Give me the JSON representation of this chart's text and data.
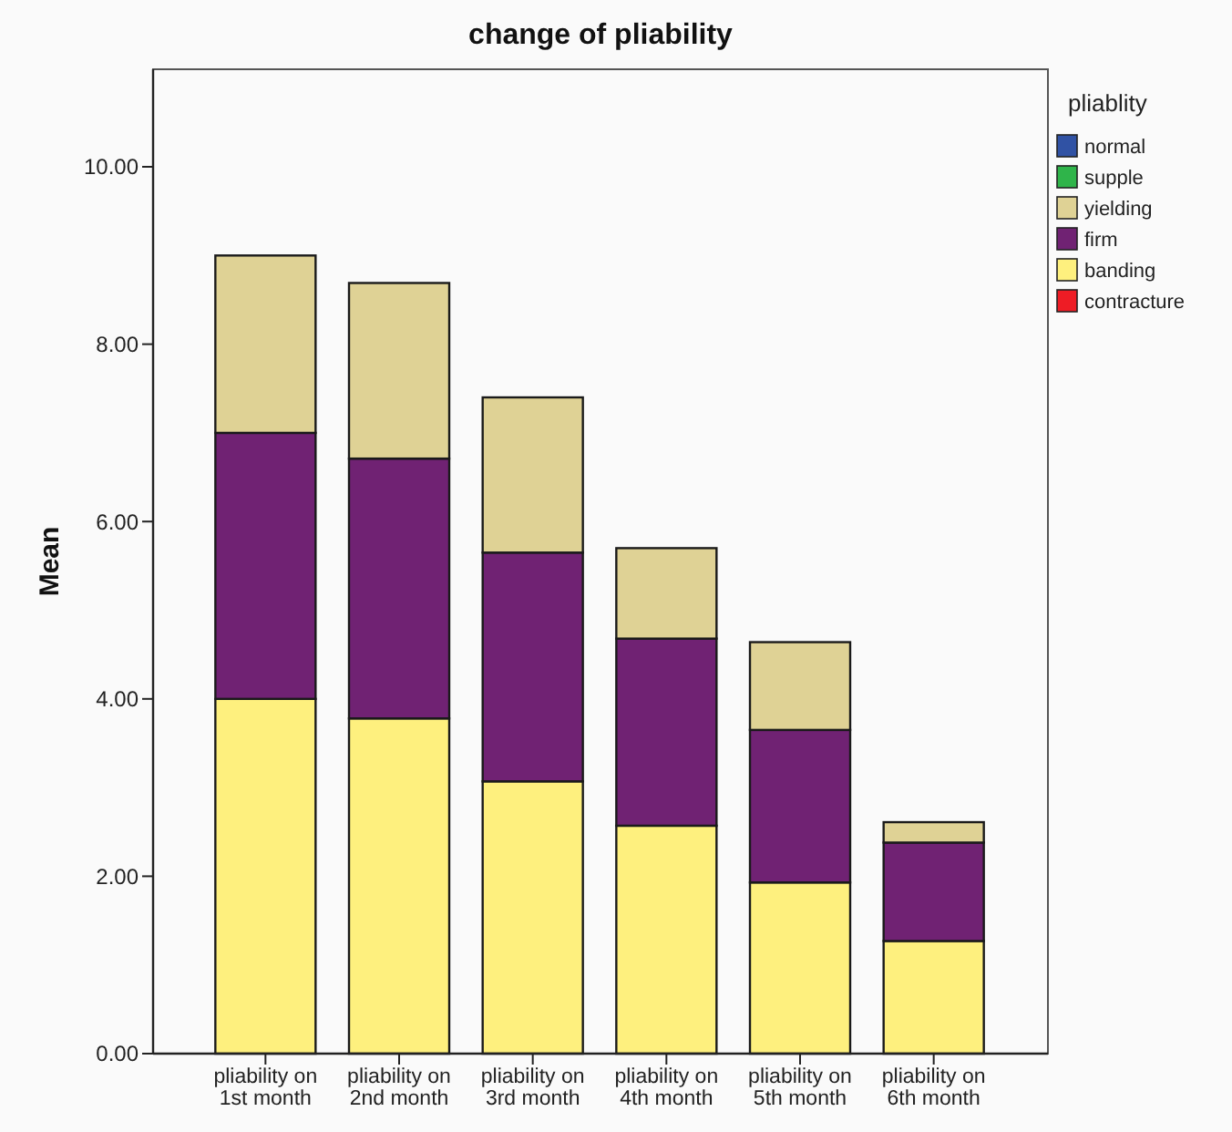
{
  "chart_data": {
    "type": "bar",
    "title": "change of pliability",
    "ylabel": "Mean",
    "legend_title": "pliablity",
    "legend": "right",
    "stacked": true,
    "categories": [
      "pliability on 1st month",
      "pliability on 2nd month",
      "pliability on 3rd month",
      "pliability on 4th month",
      "pliability on 5th month",
      "pliability on 6th month"
    ],
    "ylim": [
      0,
      11.1
    ],
    "yticks": [
      {
        "value": 0,
        "label": "0.00"
      },
      {
        "value": 2,
        "label": "2.00"
      },
      {
        "value": 4,
        "label": "4.00"
      },
      {
        "value": 6,
        "label": "6.00"
      },
      {
        "value": 8,
        "label": "8.00"
      },
      {
        "value": 10,
        "label": "10.00"
      }
    ],
    "series": [
      {
        "name": "contracture",
        "color": "#ee1c25",
        "values": [
          0,
          0,
          0,
          0,
          0,
          0
        ]
      },
      {
        "name": "banding",
        "color": "#fef07e",
        "values": [
          4.0,
          3.78,
          3.07,
          2.57,
          1.93,
          1.27
        ]
      },
      {
        "name": "firm",
        "color": "#702273",
        "values": [
          3.0,
          2.93,
          2.58,
          2.11,
          1.72,
          1.11
        ]
      },
      {
        "name": "yielding",
        "color": "#dfd295",
        "values": [
          2.0,
          1.98,
          1.75,
          1.02,
          0.99,
          0.23
        ]
      },
      {
        "name": "supple",
        "color": "#2fb44a",
        "values": [
          0,
          0,
          0,
          0,
          0,
          0
        ]
      },
      {
        "name": "normal",
        "color": "#3052a4",
        "values": [
          0,
          0,
          0,
          0,
          0,
          0
        ]
      }
    ]
  }
}
